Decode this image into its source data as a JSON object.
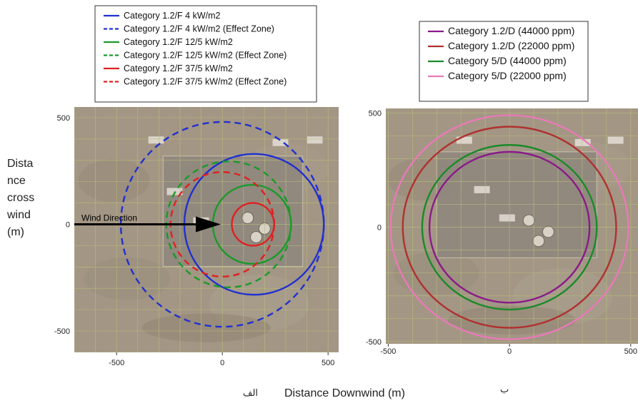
{
  "left_ylabel_lines": [
    "Dista",
    "nce",
    "cross",
    "wind",
    "(m)"
  ],
  "xlabel": "Distance Downwind (m)",
  "panel_a_label": "الف",
  "panel_b_label": "ب",
  "wind_label": "Wind Direction",
  "chart_data": [
    {
      "type": "line",
      "title": "",
      "xlabel": "Distance Downwind (m)",
      "ylabel": "Distance crosswind (m)",
      "xlim": [
        -700,
        550
      ],
      "ylim": [
        -600,
        550
      ],
      "xticks": [
        -500,
        0,
        500
      ],
      "yticks": [
        -500,
        0,
        500
      ],
      "legend_position": "top",
      "annotation": "Wind Direction",
      "series": [
        {
          "name": "Category 1.2/F 4 kW/m2",
          "color": "#2030d0",
          "dash": false,
          "cx": 150,
          "cy": 0,
          "r": 330
        },
        {
          "name": "Category 1.2/F 4 kW/m2 (Effect Zone)",
          "color": "#2030d0",
          "dash": true,
          "cx": 0,
          "cy": 0,
          "r": 480
        },
        {
          "name": "Category 1.2/F 12/5 kW/m2",
          "color": "#1a9a2a",
          "dash": false,
          "cx": 140,
          "cy": 0,
          "r": 185
        },
        {
          "name": "Category 1.2/F 12/5 kW/m2 (Effect Zone)",
          "color": "#1a9a2a",
          "dash": true,
          "cx": 30,
          "cy": 0,
          "r": 295
        },
        {
          "name": "Category 1.2/F 37/5 kW/m2",
          "color": "#e02020",
          "dash": false,
          "cx": 145,
          "cy": 0,
          "r": 100
        },
        {
          "name": "Category 1.2/F 37/5 kW/m2 (Effect Zone)",
          "color": "#e02020",
          "dash": true,
          "cx": 0,
          "cy": 0,
          "r": 245
        }
      ]
    },
    {
      "type": "line",
      "title": "",
      "xlabel": "Distance Downwind (m)",
      "ylabel": "",
      "xlim": [
        -510,
        530
      ],
      "ylim": [
        -510,
        520
      ],
      "xticks": [
        -500,
        0,
        500
      ],
      "yticks": [
        -500,
        0,
        500
      ],
      "legend_position": "top",
      "series": [
        {
          "name": "Category 1.2/D (44000 ppm)",
          "color": "#8a1a8a",
          "dash": false,
          "cx": 0,
          "cy": 0,
          "r": 330
        },
        {
          "name": "Category 1.2/D (22000 ppm)",
          "color": "#b03030",
          "dash": false,
          "cx": 0,
          "cy": 0,
          "r": 440
        },
        {
          "name": "Category 5/D (44000 ppm)",
          "color": "#1a8a2a",
          "dash": false,
          "cx": 0,
          "cy": 0,
          "r": 360
        },
        {
          "name": "Category 5/D (22000 ppm)",
          "color": "#e87ab8",
          "dash": false,
          "cx": 0,
          "cy": 0,
          "r": 490
        }
      ]
    }
  ]
}
